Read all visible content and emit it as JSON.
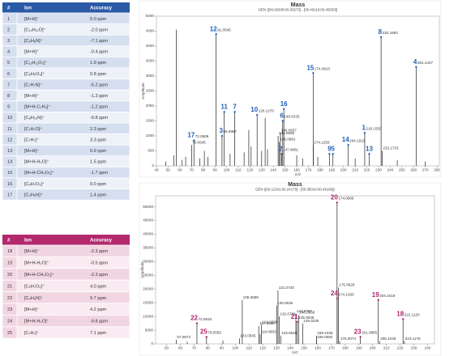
{
  "tables": [
    {
      "header": [
        "#",
        "Ion",
        "Accuracy"
      ],
      "header_color": "#2b5aa6",
      "row_colors": [
        "#d6dff0",
        "#edf1f8"
      ],
      "rows": [
        [
          "1",
          "[M+H]⁺",
          "5.0 ppm"
        ],
        [
          "2",
          "[C₁₀H₁₁O]⁺",
          "-2.0 ppm"
        ],
        [
          "3",
          "[C₆H₆N]⁺",
          "-7.1 ppm"
        ],
        [
          "4",
          "[M+H]⁺",
          "-0.4 ppm"
        ],
        [
          "5",
          "[C₁₁H₁₁O₂]⁺",
          "1.9 ppm"
        ],
        [
          "6",
          "[C₆H₅O₄]⁺",
          "0.8 ppm"
        ],
        [
          "7",
          "[C₇H₇N]⁺",
          "-6.2 ppm"
        ],
        [
          "8",
          "[M+H]⁺",
          "-1.3 ppm"
        ],
        [
          "9",
          "[M+H-C₂H₄]⁺",
          "-1.2 ppm"
        ],
        [
          "10",
          "[C₈H₁₀N]⁺",
          "-0.8 ppm"
        ],
        [
          "11",
          "[C₇H₇O]⁺",
          "2.3 ppm"
        ],
        [
          "12",
          "[C₇H₇]⁺",
          "3.3 ppm"
        ],
        [
          "13",
          "[M+H]⁺",
          "0.9 ppm"
        ],
        [
          "14",
          "[M+H-H₂O]⁺",
          "1.5 ppm"
        ],
        [
          "15",
          "[M+H-CH₂O₂]⁺",
          "-1.7 ppm"
        ],
        [
          "16",
          "[C₉H₇O₃]⁺",
          "0.0 ppm"
        ],
        [
          "17",
          "[C₄H₅N]⁺",
          "1.4 ppm"
        ]
      ]
    },
    {
      "header": [
        "#",
        "Ion",
        "Accuracy"
      ],
      "header_color": "#b2296e",
      "row_colors": [
        "#f1d6e2",
        "#f9ebf1"
      ],
      "rows": [
        [
          "18",
          "[M+H]⁺",
          "-2.3 ppm"
        ],
        [
          "19",
          "[M+H-H₂O]⁺",
          "-0.5 ppm"
        ],
        [
          "20",
          "[M+H-CH₂O₂]⁺",
          "-2.3 ppm"
        ],
        [
          "21",
          "[C₉H₇O₃]⁺",
          "4.0 ppm"
        ],
        [
          "22",
          "[C₄H₅N]⁺",
          "9.7 ppm"
        ],
        [
          "23",
          "[M+H]⁺",
          "4.2 ppm"
        ],
        [
          "24",
          "[M+H-H₂O]⁺",
          "-9.8 ppm"
        ],
        [
          "25",
          "[C₇H₇]⁺",
          "7.1 ppm"
        ]
      ]
    }
  ],
  "chart_data": [
    {
      "type": "stem",
      "title": "Mass",
      "subtitle": "GEN ([00.02608:00.09273] - [00.40110:00.45930])",
      "xlabel": "m/z",
      "ylabel": "Amplitude",
      "color": "#222222",
      "label_color": "#1f5fb4",
      "xlim": [
        40,
        282
      ],
      "ylim": [
        0,
        5000
      ],
      "xticks": [
        40,
        50,
        60,
        70,
        80,
        90,
        100,
        110,
        120,
        130,
        140,
        150,
        160,
        170,
        180,
        190,
        200,
        210,
        220,
        230,
        240,
        250,
        260,
        270,
        280
      ],
      "yticks": [
        0,
        500,
        1000,
        1500,
        2000,
        2500,
        3000,
        3500,
        4000,
        4500,
        5000
      ],
      "x": [
        48,
        55,
        57,
        62,
        65,
        70.0645,
        72.0809,
        77,
        81,
        84,
        91.0545,
        96.0957,
        98,
        103,
        107,
        115,
        119,
        121,
        126.1276,
        130,
        133,
        135,
        144.0909,
        145.0881,
        146.0957,
        147.0881,
        148.0233,
        149,
        160,
        165,
        174.091,
        174.1259,
        178,
        188,
        191,
        204.1022,
        210,
        218.155,
        222,
        232.1693,
        233.1733,
        246,
        262.1437,
        270
      ],
      "values": [
        150,
        350,
        4550,
        200,
        300,
        700,
        850,
        250,
        500,
        300,
        4400,
        1000,
        1800,
        400,
        1800,
        450,
        1200,
        650,
        1700,
        500,
        1600,
        550,
        1000,
        800,
        1100,
        400,
        1500,
        1900,
        350,
        250,
        3100,
        700,
        300,
        400,
        400,
        700,
        250,
        1100,
        400,
        4300,
        500,
        200,
        3300,
        150
      ],
      "peak_ids": [
        null,
        null,
        null,
        null,
        null,
        null,
        "17",
        null,
        null,
        null,
        "12",
        "3",
        "11",
        null,
        "7",
        null,
        null,
        null,
        "10",
        null,
        null,
        null,
        null,
        null,
        null,
        "2",
        "6",
        "16",
        null,
        null,
        "15",
        null,
        null,
        "9",
        "5",
        "14",
        null,
        "1",
        "13",
        "8",
        null,
        null,
        "4",
        null
      ],
      "peak_labels": [
        null,
        null,
        null,
        null,
        null,
        "70.0645",
        "72.0809",
        null,
        null,
        null,
        "91.0545",
        "96.0957",
        null,
        null,
        null,
        null,
        null,
        null,
        "126.1276",
        null,
        null,
        null,
        "144.0909",
        "145.0881",
        "146.0957",
        "147.0881",
        "148.0233",
        null,
        null,
        null,
        "174.0910",
        "174.1259",
        null,
        null,
        null,
        "204.1022",
        null,
        "218.1550",
        null,
        "232.1693",
        "233.1733",
        null,
        "262.1437",
        null
      ]
    },
    {
      "type": "stem",
      "title": "Mass",
      "subtitle": "GEN ([00.11341:00.24175] - [00.35016:00.49183])",
      "xlabel": "m/z",
      "ylabel": "Amplitude",
      "color": "#222222",
      "label_color": "#b0246e",
      "xlim": [
        42,
        245
      ],
      "ylim": [
        0,
        54000
      ],
      "xticks": [
        50,
        60,
        70,
        80,
        90,
        100,
        110,
        120,
        130,
        140,
        150,
        160,
        170,
        180,
        190,
        200,
        210,
        220,
        230,
        240
      ],
      "yticks": [
        0,
        5000,
        10000,
        15000,
        20000,
        25000,
        30000,
        35000,
        40000,
        45000,
        50000
      ],
      "x": [
        57.0573,
        65,
        72.0815,
        79.055,
        91,
        103.0545,
        105.0689,
        117.0568,
        118.0683,
        119.0839,
        130.0635,
        131.072,
        132.0786,
        133.0648,
        144.0797,
        145.0638,
        146.0958,
        149.023,
        159.0682,
        159.1038,
        174.0909,
        174.126,
        175.0629,
        176.0074,
        191.0865,
        204.1018,
        205.1049,
        222.112,
        223.1176
      ],
      "values": [
        1500,
        800,
        7500,
        2500,
        1200,
        2000,
        16000,
        6500,
        3500,
        7000,
        14000,
        19500,
        10000,
        3000,
        11000,
        8000,
        10500,
        7500,
        1500,
        3000,
        51500,
        16500,
        20500,
        1000,
        2500,
        16000,
        1000,
        9000,
        1000
      ],
      "peak_ids": [
        null,
        null,
        "22",
        "25",
        null,
        null,
        null,
        null,
        null,
        null,
        null,
        null,
        null,
        null,
        null,
        "21",
        null,
        null,
        null,
        null,
        "20",
        "24",
        null,
        null,
        "23",
        "19",
        null,
        "18",
        null
      ],
      "peak_labels": [
        "57.0573",
        null,
        "72.0815",
        "79.0550",
        null,
        "103.0545",
        "105.0689",
        "117.0568",
        "118.0683",
        "119.0839",
        "130.0635",
        "131.0720",
        "132.0786",
        "133.0648",
        "144.0797",
        "145.0638",
        "146.0958",
        "149.0230",
        "159.0682",
        "159.1038",
        "174.0909",
        "174.1260",
        "175.0629",
        "176.0074",
        "191.0865",
        "204.1018",
        "205.1049",
        "222.1120",
        "223.1176"
      ]
    }
  ]
}
